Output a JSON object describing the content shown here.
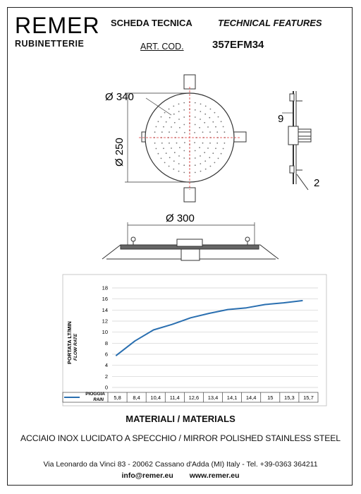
{
  "header": {
    "brand": "REMER",
    "brand_sub": "RUBINETTERIE",
    "title_it": "SCHEDA TECNICA",
    "title_en": "TECHNICAL FEATURES",
    "art_label": "ART. COD.",
    "art_code": "357EFM34"
  },
  "drawing": {
    "dim_340": "Ø 340",
    "dim_250": "Ø 250",
    "dim_9": "9",
    "dim_2": "2",
    "dim_300": "Ø 300"
  },
  "chart_data": {
    "type": "line",
    "categories": [
      "5,8",
      "8,4",
      "10,4",
      "11,4",
      "12,6",
      "13,4",
      "14,1",
      "14,4",
      "15",
      "15,3",
      "15,7"
    ],
    "series": [
      {
        "name": "PIOGGIA RAIN",
        "values": [
          5.8,
          8.4,
          10.4,
          11.4,
          12.6,
          13.4,
          14.1,
          14.4,
          15,
          15.3,
          15.7
        ]
      }
    ],
    "ylabel": "PORTATA LT/MIN",
    "ylabel_en": "FLOW RATE",
    "legend_it": "PIOGGIA",
    "legend_en": "RAIN",
    "ylim": [
      0,
      18
    ],
    "yticks": [
      "0",
      "2",
      "4",
      "6",
      "8",
      "10",
      "12",
      "14",
      "16",
      "18"
    ],
    "grid": true,
    "color": "#2a6fb0"
  },
  "materials": {
    "title": "MATERIALI / MATERIALS",
    "description": "ACCIAIO INOX LUCIDATO A SPECCHIO / MIRROR POLISHED STAINLESS STEEL"
  },
  "footer": {
    "address": "Via Leonardo da Vinci 83 - 20062 Cassano d'Adda (MI) Italy - Tel. +39-0363 364211",
    "email": "info@remer.eu",
    "website": "www.remer.eu"
  }
}
